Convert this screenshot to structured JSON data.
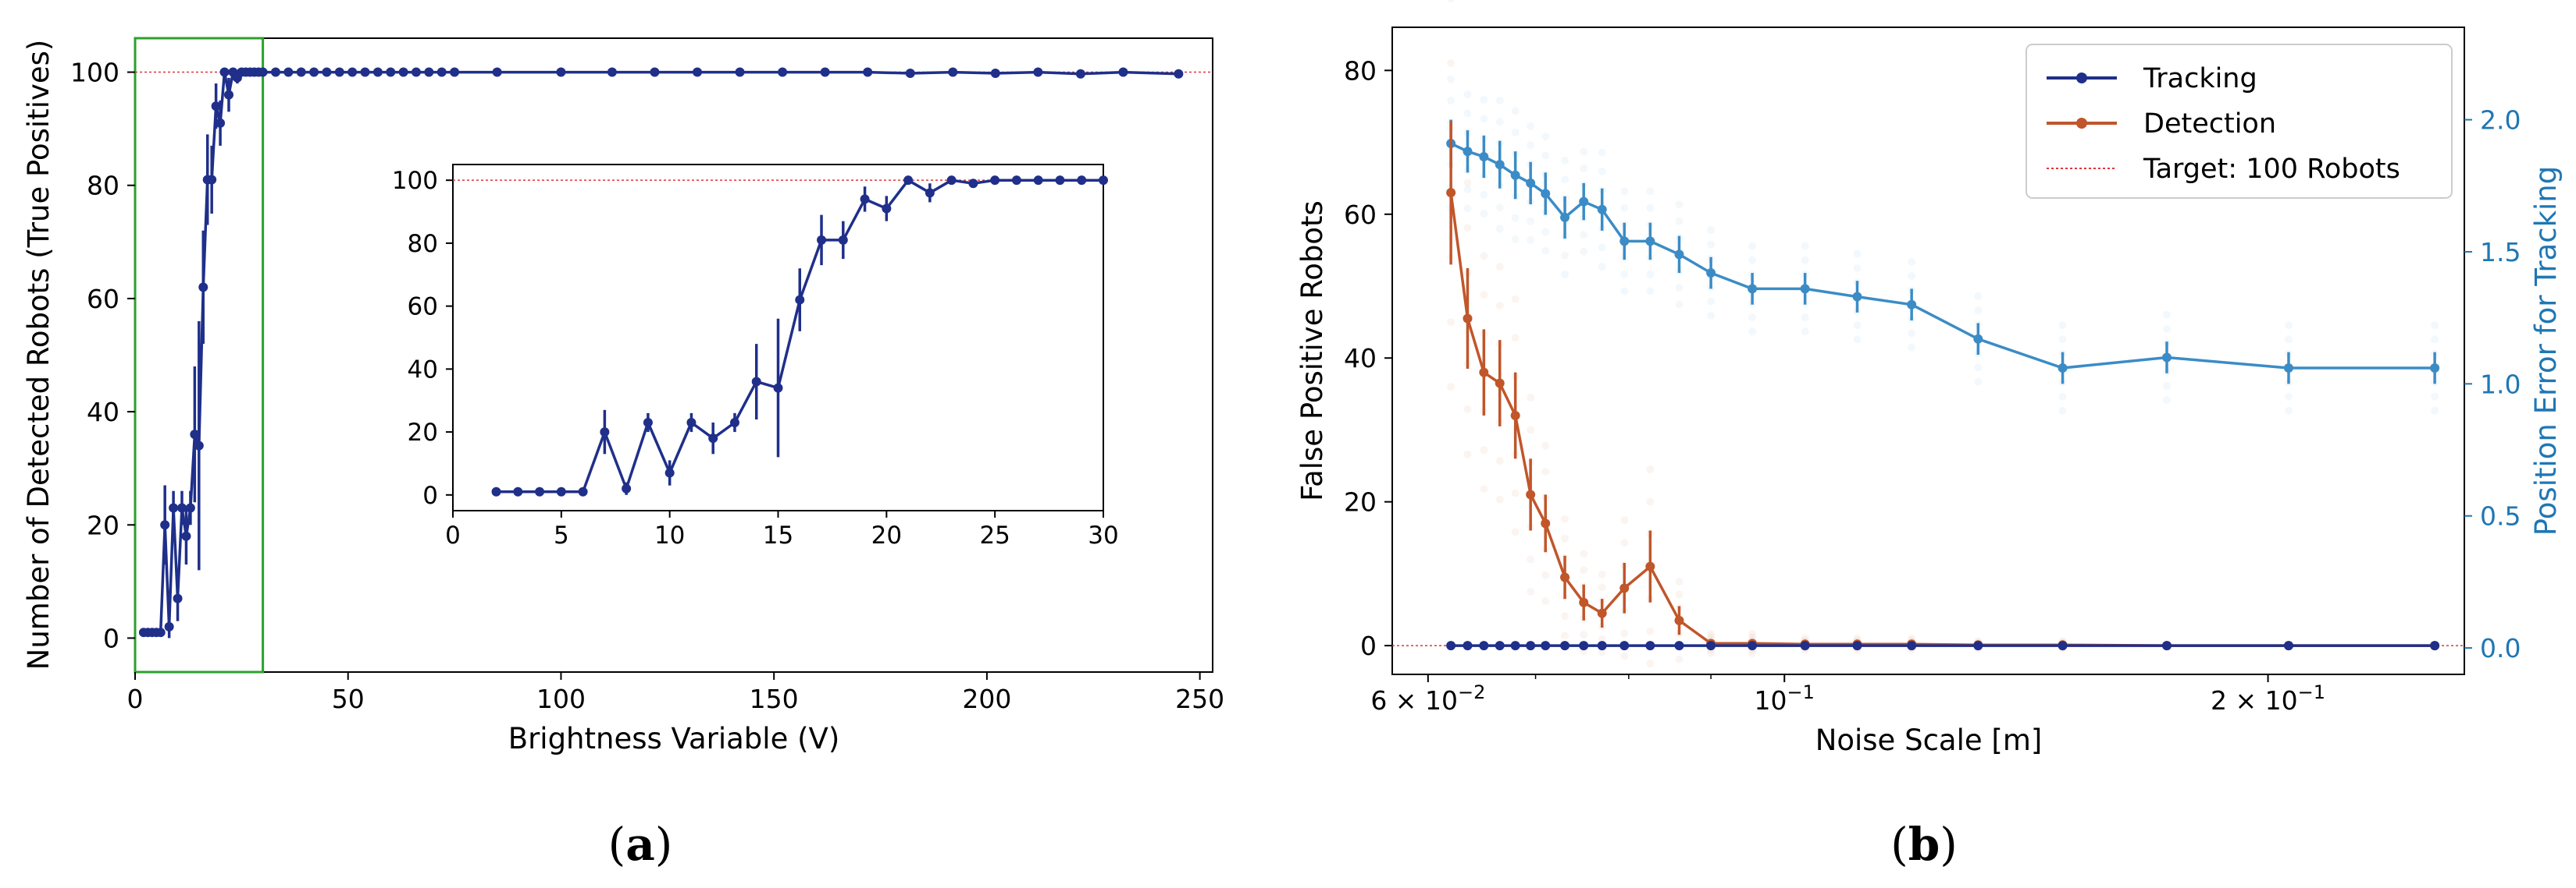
{
  "colors": {
    "tracking": "#1f2f8a",
    "detection": "#c0562a",
    "position_error": "#3b8cc6",
    "target": "#e0343c",
    "zoom_box": "#2ca02c"
  },
  "panel_labels": {
    "a": "a",
    "b": "b"
  },
  "chart_data": [
    {
      "id": "a",
      "type": "line",
      "xlabel": "Brightness Variable (V)",
      "ylabel": "Number of Detected Robots (True Positives)",
      "xlim": [
        0,
        253
      ],
      "ylim": [
        -6,
        106
      ],
      "xticks": [
        0,
        50,
        100,
        150,
        200,
        250
      ],
      "yticks": [
        0,
        20,
        40,
        60,
        80,
        100
      ],
      "target": 100,
      "zoom_region": {
        "x": [
          0,
          30
        ],
        "y": [
          -6,
          106
        ]
      },
      "series": [
        {
          "name": "Detected Robots",
          "x": [
            2,
            3,
            4,
            5,
            6,
            7,
            8,
            9,
            10,
            11,
            12,
            13,
            14,
            15,
            16,
            17,
            18,
            19,
            20,
            21,
            22,
            23,
            24,
            25,
            26,
            27,
            28,
            29,
            30,
            33,
            36,
            39,
            42,
            45,
            48,
            51,
            54,
            57,
            60,
            63,
            66,
            69,
            72,
            75,
            85,
            100,
            112,
            122,
            132,
            142,
            152,
            162,
            172,
            182,
            192,
            202,
            212,
            222,
            232,
            245
          ],
          "y": [
            1,
            1,
            1,
            1,
            1,
            20,
            2,
            23,
            7,
            23,
            18,
            23,
            36,
            34,
            62,
            81,
            81,
            94,
            91,
            100,
            96,
            100,
            99,
            100,
            100,
            100,
            100,
            100,
            100,
            100,
            100,
            100,
            100,
            100,
            100,
            100,
            100,
            100,
            100,
            100,
            100,
            100,
            100,
            100,
            100,
            100,
            100,
            100,
            100,
            100,
            100,
            100,
            100,
            99.8,
            100,
            99.8,
            100,
            99.7,
            100,
            99.7
          ],
          "err": [
            0,
            0,
            0,
            0,
            0,
            7,
            2,
            3,
            4,
            3,
            5,
            3,
            12,
            22,
            10,
            8,
            6,
            4,
            4,
            0,
            3,
            0,
            1,
            0,
            0,
            0,
            0,
            0,
            0,
            0,
            0,
            0,
            0,
            0,
            0,
            0,
            0,
            0,
            0,
            0,
            0,
            0,
            0,
            0,
            0,
            0,
            0,
            0,
            0,
            0,
            0,
            0,
            0,
            0.3,
            0,
            0.3,
            0,
            0.4,
            0,
            0.4
          ]
        }
      ],
      "inset": {
        "xlim": [
          0,
          30
        ],
        "ylim": [
          -5,
          105
        ],
        "xticks": [
          0,
          5,
          10,
          15,
          20,
          25,
          30
        ],
        "yticks": [
          0,
          20,
          40,
          60,
          80,
          100
        ]
      }
    },
    {
      "id": "b",
      "type": "line",
      "xscale": "log",
      "xlabel": "Noise Scale [m]",
      "ylabel": "False Positive Robots",
      "ylabel_right": "Position Error for Tracking",
      "xlim": [
        0.057,
        0.265
      ],
      "ylim": [
        -4,
        86
      ],
      "ylim_right": [
        -0.1,
        2.35
      ],
      "xtick_labels": [
        {
          "value": 0.06,
          "mantissa": "6",
          "exponent": "−2"
        },
        {
          "value": 0.1,
          "mantissa": "",
          "exponent": "−1"
        },
        {
          "value": 0.2,
          "mantissa": "2",
          "exponent": "−1"
        }
      ],
      "xtick_base": "10",
      "times_symbol": "×",
      "yticks": [
        0,
        20,
        40,
        60,
        80
      ],
      "yticks_right": [
        "0.0",
        "0.5",
        "1.0",
        "1.5",
        "2.0"
      ],
      "target": 0,
      "legend": [
        "Tracking",
        "Detection",
        "Target: 100 Robots"
      ],
      "legend_position": "top-right",
      "series": [
        {
          "name": "Tracking",
          "axis": "left",
          "x": [
            0.062,
            0.0635,
            0.065,
            0.0665,
            0.068,
            0.0695,
            0.071,
            0.073,
            0.075,
            0.077,
            0.0795,
            0.0825,
            0.086,
            0.09,
            0.0955,
            0.103,
            0.111,
            0.12,
            0.132,
            0.149,
            0.173,
            0.206,
            0.254
          ],
          "y": [
            0,
            0,
            0,
            0,
            0,
            0,
            0,
            0,
            0,
            0,
            0,
            0,
            0,
            0,
            0,
            0,
            0,
            0,
            0,
            0,
            0,
            0,
            0
          ],
          "err": [
            0,
            0,
            0,
            0,
            0,
            0,
            0,
            0,
            0,
            0,
            0,
            0,
            0,
            0,
            0,
            0,
            0,
            0,
            0,
            0,
            0,
            0,
            0
          ]
        },
        {
          "name": "Detection",
          "axis": "left",
          "x": [
            0.062,
            0.0635,
            0.065,
            0.0665,
            0.068,
            0.0695,
            0.071,
            0.073,
            0.075,
            0.077,
            0.0795,
            0.0825,
            0.086,
            0.09,
            0.0955,
            0.103,
            0.111,
            0.12,
            0.132,
            0.149,
            0.173,
            0.206,
            0.254
          ],
          "y": [
            63,
            45.5,
            38,
            36.5,
            32,
            21,
            17,
            9.5,
            6,
            4.5,
            8,
            11,
            3.5,
            0.3,
            0.3,
            0.2,
            0.2,
            0.2,
            0.1,
            0.1,
            0,
            0,
            0
          ],
          "err": [
            10,
            7,
            6,
            6,
            6,
            5,
            4,
            3,
            2.5,
            2,
            3.5,
            5,
            2,
            0.5,
            0.5,
            0.3,
            0.3,
            0.3,
            0.2,
            0.2,
            0,
            0,
            0
          ]
        },
        {
          "name": "Position Error",
          "axis": "right",
          "x": [
            0.062,
            0.0635,
            0.065,
            0.0665,
            0.068,
            0.0695,
            0.071,
            0.073,
            0.075,
            0.077,
            0.0795,
            0.0825,
            0.086,
            0.09,
            0.0955,
            0.103,
            0.111,
            0.12,
            0.132,
            0.149,
            0.173,
            0.206,
            0.254
          ],
          "y": [
            1.91,
            1.88,
            1.86,
            1.83,
            1.79,
            1.76,
            1.72,
            1.63,
            1.69,
            1.66,
            1.54,
            1.54,
            1.49,
            1.42,
            1.36,
            1.36,
            1.33,
            1.3,
            1.17,
            1.06,
            1.1,
            1.06,
            1.06
          ],
          "err": [
            0.09,
            0.08,
            0.08,
            0.09,
            0.09,
            0.08,
            0.08,
            0.08,
            0.07,
            0.08,
            0.07,
            0.07,
            0.07,
            0.06,
            0.06,
            0.06,
            0.06,
            0.06,
            0.06,
            0.06,
            0.06,
            0.06,
            0.06
          ]
        }
      ]
    }
  ]
}
